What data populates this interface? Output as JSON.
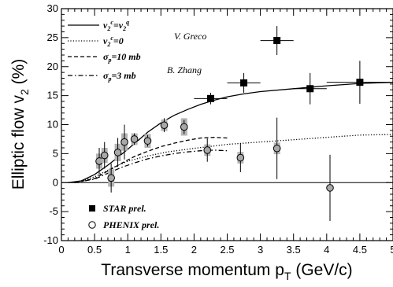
{
  "chart_data": {
    "type": "scatter",
    "xlabel": "Transverse momentum p",
    "xlabel_sub": "T",
    "xlabel_unit": " (GeV/c)",
    "ylabel": "Elliptic flow v",
    "ylabel_sub": "2",
    "ylabel_unit": " (%)",
    "xlim": [
      0,
      5
    ],
    "ylim": [
      -10,
      30
    ],
    "x_ticks": [
      "0",
      "0.5",
      "1",
      "1.5",
      "2",
      "2.5",
      "3",
      "3.5",
      "4",
      "4.5",
      "5"
    ],
    "y_ticks": [
      "-10",
      "-5",
      "0",
      "5",
      "10",
      "15",
      "20",
      "25",
      "30"
    ],
    "grid": false,
    "legend_top": [
      {
        "label": "v2c=v2q",
        "style": "solid"
      },
      {
        "label": "v2c=0",
        "style": "dotted"
      },
      {
        "label": "σp=10 mb",
        "style": "dashed"
      },
      {
        "label": "σp=3 mb",
        "style": "dashdot"
      }
    ],
    "author_labels": [
      "V. Greco",
      "B. Zhang"
    ],
    "legend_bottom": [
      {
        "label": "STAR prel.",
        "marker": "square"
      },
      {
        "label": "PHENIX prel.",
        "marker": "circle"
      }
    ],
    "series": [
      {
        "name": "STAR prel.",
        "marker": "square",
        "points": [
          {
            "x": 2.25,
            "y": 14.5,
            "xerr": 0.25,
            "yerr": 1.0
          },
          {
            "x": 2.75,
            "y": 17.2,
            "xerr": 0.25,
            "yerr": 1.7
          },
          {
            "x": 3.25,
            "y": 24.5,
            "xerr": 0.25,
            "yerr": 2.5
          },
          {
            "x": 3.75,
            "y": 16.2,
            "xerr": 0.25,
            "yerr": 2.7
          },
          {
            "x": 4.5,
            "y": 17.3,
            "xerr": 0.5,
            "yerr": 3.7
          }
        ]
      },
      {
        "name": "PHENIX prel.",
        "marker": "circle",
        "points": [
          {
            "x": 0.57,
            "y": 3.7,
            "yerr": 2.3,
            "sys": 1.3
          },
          {
            "x": 0.65,
            "y": 4.7,
            "yerr": 2.3,
            "sys": 1.3
          },
          {
            "x": 0.75,
            "y": 0.8,
            "yerr": 2.5,
            "sys": 1.5
          },
          {
            "x": 0.85,
            "y": 5.2,
            "yerr": 2.5,
            "sys": 1.5
          },
          {
            "x": 0.95,
            "y": 7.0,
            "yerr": 3.0,
            "sys": 1.5
          },
          {
            "x": 1.1,
            "y": 7.5,
            "yerr": 1.0,
            "sys": 1.0
          },
          {
            "x": 1.3,
            "y": 7.2,
            "yerr": 1.0,
            "sys": 1.2
          },
          {
            "x": 1.55,
            "y": 9.9,
            "yerr": 1.2,
            "sys": 1.0
          },
          {
            "x": 1.85,
            "y": 9.6,
            "yerr": 1.2,
            "sys": 1.5
          },
          {
            "x": 2.2,
            "y": 5.6,
            "yerr": 2.0,
            "sys": 1.0
          },
          {
            "x": 2.7,
            "y": 4.3,
            "yerr": 2.5,
            "sys": 1.0
          },
          {
            "x": 3.25,
            "y": 5.9,
            "yerr": 5.3,
            "sys": 1.0
          },
          {
            "x": 4.05,
            "y": -0.9,
            "yerr": 5.7,
            "sys": 0
          }
        ]
      }
    ],
    "curves": [
      {
        "name": "v2c=v2q",
        "style": "solid",
        "points": [
          [
            0.1,
            0
          ],
          [
            0.3,
            0.3
          ],
          [
            0.5,
            1.4
          ],
          [
            0.7,
            3.0
          ],
          [
            0.9,
            4.8
          ],
          [
            1.1,
            6.7
          ],
          [
            1.3,
            8.7
          ],
          [
            1.5,
            10.3
          ],
          [
            1.7,
            11.6
          ],
          [
            1.9,
            12.6
          ],
          [
            2.1,
            13.5
          ],
          [
            2.3,
            14.2
          ],
          [
            2.5,
            14.8
          ],
          [
            2.75,
            15.3
          ],
          [
            3.0,
            15.7
          ],
          [
            3.5,
            16.2
          ],
          [
            4.0,
            16.7
          ],
          [
            4.5,
            17.1
          ],
          [
            5.0,
            17.3
          ]
        ]
      },
      {
        "name": "v2c=0",
        "style": "dotted",
        "points": [
          [
            0.2,
            0
          ],
          [
            0.5,
            1.0
          ],
          [
            0.8,
            2.7
          ],
          [
            1.0,
            3.7
          ],
          [
            1.3,
            4.6
          ],
          [
            1.6,
            5.3
          ],
          [
            2.0,
            5.9
          ],
          [
            2.5,
            6.6
          ],
          [
            3.0,
            7.0
          ],
          [
            3.5,
            7.4
          ],
          [
            4.0,
            7.8
          ],
          [
            4.5,
            8.2
          ],
          [
            5.0,
            8.3
          ]
        ]
      },
      {
        "name": "σp=10 mb",
        "style": "dashed",
        "points": [
          [
            0.2,
            0
          ],
          [
            0.5,
            0.7
          ],
          [
            0.7,
            2.0
          ],
          [
            0.9,
            3.3
          ],
          [
            1.1,
            4.5
          ],
          [
            1.3,
            5.4
          ],
          [
            1.5,
            6.2
          ],
          [
            1.7,
            6.8
          ],
          [
            1.9,
            7.3
          ],
          [
            2.1,
            7.7
          ],
          [
            2.3,
            7.8
          ],
          [
            2.5,
            7.7
          ]
        ]
      },
      {
        "name": "σp=3 mb",
        "style": "dashdot",
        "points": [
          [
            0.2,
            0
          ],
          [
            0.5,
            0.6
          ],
          [
            0.7,
            1.6
          ],
          [
            0.9,
            2.6
          ],
          [
            1.1,
            3.4
          ],
          [
            1.3,
            4.1
          ],
          [
            1.5,
            4.6
          ],
          [
            1.7,
            5.0
          ],
          [
            1.9,
            5.3
          ],
          [
            2.1,
            5.5
          ],
          [
            2.3,
            5.6
          ],
          [
            2.5,
            5.5
          ]
        ]
      }
    ]
  }
}
